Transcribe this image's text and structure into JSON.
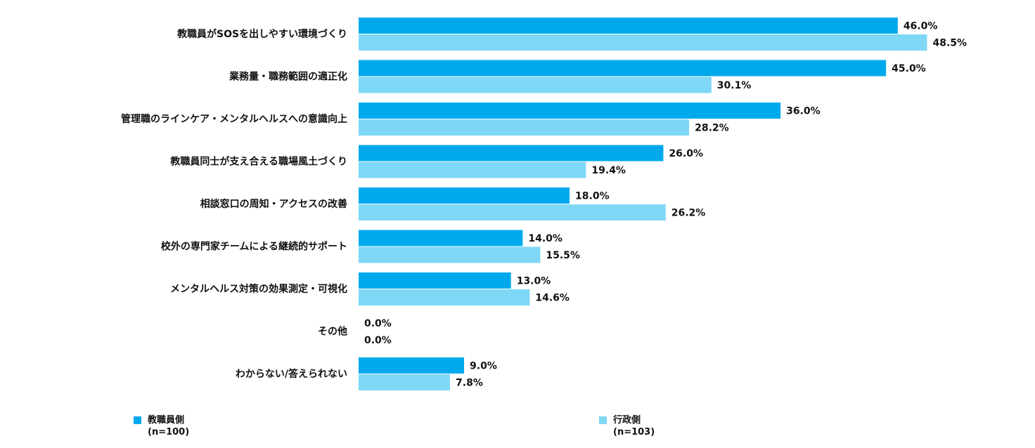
{
  "chart_data": {
    "type": "bar",
    "orientation": "horizontal",
    "categories": [
      "教職員がSOSを出しやすい環境づくり",
      "業務量・職務範囲の適正化",
      "管理職のラインケア・メンタルヘルスへの意識向上",
      "教職員同士が支え合える職場風土づくり",
      "相談窓口の周知・アクセスの改善",
      "校外の専門家チームによる継続的サポート",
      "メンタルヘルス対策の効果測定・可視化",
      "その他",
      "わからない/答えられない"
    ],
    "series": [
      {
        "name": "教職員側\n(n=100)",
        "color": "#00a9ec",
        "values": [
          46.0,
          45.0,
          36.0,
          26.0,
          18.0,
          14.0,
          13.0,
          0.0,
          9.0
        ],
        "value_labels": [
          "46.0%",
          "45.0%",
          "36.0%",
          "26.0%",
          "18.0%",
          "14.0%",
          "13.0%",
          "0.0%",
          "9.0%"
        ]
      },
      {
        "name": "行政側\n(n=103)",
        "color": "#7fd7f6",
        "values": [
          48.5,
          30.1,
          28.2,
          19.4,
          26.2,
          15.5,
          14.6,
          0.0,
          7.8
        ],
        "value_labels": [
          "48.5%",
          "30.1%",
          "28.2%",
          "19.4%",
          "26.2%",
          "15.5%",
          "14.6%",
          "0.0%",
          "7.8%"
        ]
      }
    ]
  }
}
